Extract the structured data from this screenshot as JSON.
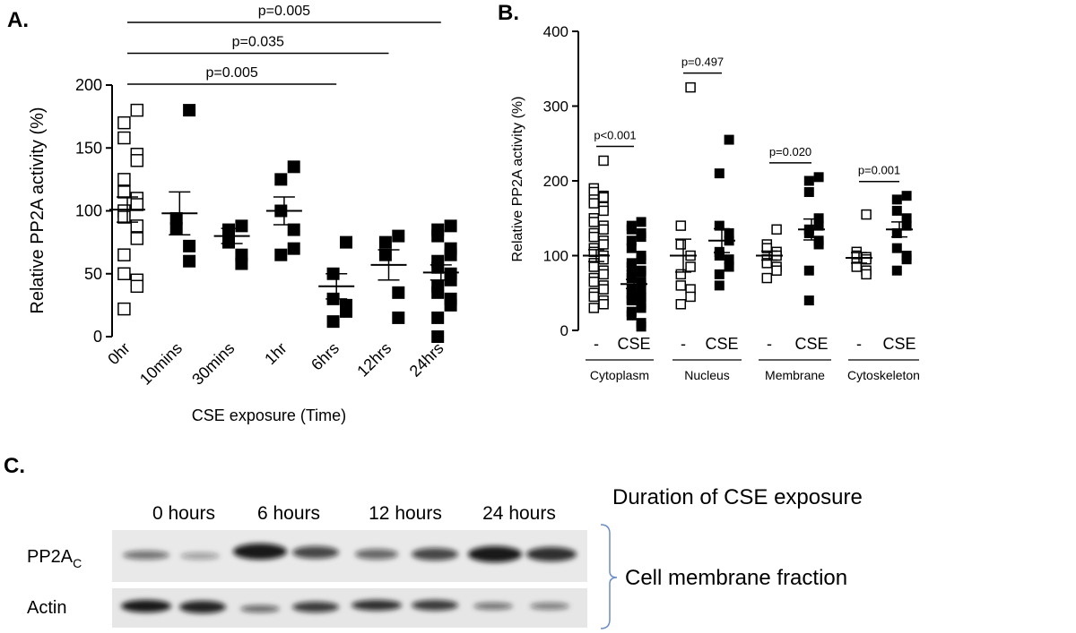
{
  "chart_data": [
    {
      "type": "dot",
      "panel_label": "A.",
      "x_label": "CSE exposure (Time)",
      "y_label": "Relative PP2A activity (%)",
      "categories": [
        "0hr",
        "10mins",
        "30mins",
        "1hr",
        "6hrs",
        "12hrs",
        "24hrs"
      ],
      "marker_fill": [
        "open",
        "filled",
        "filled",
        "filled",
        "filled",
        "filled",
        "filled"
      ],
      "points": [
        [
          180,
          170,
          158,
          145,
          140,
          125,
          115,
          110,
          105,
          100,
          95,
          88,
          78,
          65,
          50,
          45,
          40,
          22
        ],
        [
          180,
          94,
          86,
          72,
          60
        ],
        [
          88,
          85,
          75,
          65,
          58
        ],
        [
          135,
          125,
          100,
          85,
          70,
          65
        ],
        [
          75,
          50,
          30,
          25,
          20,
          12
        ],
        [
          80,
          75,
          65,
          35,
          15
        ],
        [
          88,
          85,
          80,
          70,
          65,
          60,
          55,
          50,
          45,
          40,
          35,
          30,
          25,
          15,
          0
        ]
      ],
      "means": [
        101,
        98,
        80,
        100,
        40,
        57,
        51
      ],
      "sems": [
        10,
        17,
        6,
        11,
        10,
        12,
        6
      ],
      "comparisons": [
        {
          "label": "p=0.005",
          "from": "0hr",
          "to": "24hrs"
        },
        {
          "label": "p=0.035",
          "from": "0hr",
          "to": "12hrs"
        },
        {
          "label": "p=0.005",
          "from": "0hr",
          "to": "6hrs"
        }
      ],
      "color": "#000000",
      "ylim": [
        0,
        200
      ],
      "yticks": [
        0,
        50,
        100,
        150,
        200
      ]
    },
    {
      "type": "dot",
      "panel_label": "B.",
      "y_label": "Relative PP2A activity (%)",
      "categories": [
        "-",
        "CSE",
        "-",
        "CSE",
        "-",
        "CSE",
        "-",
        "CSE"
      ],
      "groups": [
        "Cytoplasm",
        "Nucleus",
        "Membrane",
        "Cytoskeleton"
      ],
      "marker_fill": [
        "open",
        "filled",
        "open",
        "filled",
        "open",
        "filled",
        "open",
        "filled"
      ],
      "points": [
        [
          227,
          190,
          185,
          180,
          178,
          175,
          170,
          165,
          160,
          150,
          145,
          140,
          135,
          130,
          125,
          120,
          115,
          110,
          105,
          100,
          95,
          90,
          85,
          80,
          75,
          70,
          65,
          60,
          55,
          50,
          45,
          40,
          35,
          30
        ],
        [
          145,
          140,
          135,
          130,
          125,
          120,
          110,
          100,
          95,
          90,
          85,
          80,
          78,
          75,
          70,
          65,
          60,
          55,
          50,
          48,
          45,
          42,
          40,
          35,
          30,
          25,
          20,
          10,
          5
        ],
        [
          325,
          140,
          115,
          100,
          85,
          75,
          60,
          55,
          45,
          35
        ],
        [
          255,
          210,
          140,
          130,
          120,
          105,
          100,
          95,
          85,
          75,
          60
        ],
        [
          135,
          115,
          110,
          105,
          100,
          95,
          90,
          85,
          80,
          70
        ],
        [
          205,
          200,
          185,
          150,
          140,
          135,
          130,
          120,
          115,
          80,
          40
        ],
        [
          155,
          105,
          100,
          98,
          95,
          90,
          85,
          80,
          75
        ],
        [
          180,
          175,
          160,
          150,
          140,
          130,
          110,
          100,
          95,
          80
        ]
      ],
      "means": [
        100,
        62,
        100,
        120,
        100,
        135,
        97,
        135
      ],
      "sems": [
        8,
        6,
        22,
        16,
        6,
        14,
        7,
        10
      ],
      "comparisons": [
        {
          "label": "p<0.001",
          "group": "Cytoplasm"
        },
        {
          "label": "p=0.497",
          "group": "Nucleus"
        },
        {
          "label": "p=0.020",
          "group": "Membrane"
        },
        {
          "label": "p=0.001",
          "group": "Cytoskeleton"
        }
      ],
      "color": "#000000",
      "ylim": [
        0,
        400
      ],
      "yticks": [
        0,
        100,
        200,
        300,
        400
      ]
    }
  ],
  "panel_c": {
    "panel_label": "C.",
    "heading": "Duration of CSE exposure",
    "lanes": [
      "0 hours",
      "6 hours",
      "12 hours",
      "24 hours"
    ],
    "row_labels": [
      {
        "text": "PP2A",
        "subscript": "C"
      },
      {
        "text": "Actin"
      }
    ],
    "fraction_label": "Cell membrane  fraction"
  }
}
